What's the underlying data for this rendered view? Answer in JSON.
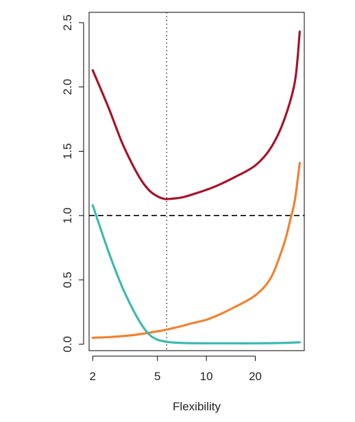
{
  "chart_data": {
    "type": "line",
    "title": "",
    "xlabel": "Flexibility",
    "ylabel": "",
    "x_scale": "log",
    "xlim": [
      1.9,
      40
    ],
    "ylim": [
      -0.05,
      2.58
    ],
    "x_ticks": [
      {
        "value": 2,
        "label": "2"
      },
      {
        "value": 5,
        "label": "5"
      },
      {
        "value": 10,
        "label": "10"
      },
      {
        "value": 20,
        "label": "20"
      }
    ],
    "y_ticks": [
      {
        "value": 0.0,
        "label": "0.0"
      },
      {
        "value": 0.5,
        "label": "0.5"
      },
      {
        "value": 1.0,
        "label": "1.0"
      },
      {
        "value": 1.5,
        "label": "1.5"
      },
      {
        "value": 2.0,
        "label": "2.0"
      },
      {
        "value": 2.5,
        "label": "2.5"
      }
    ],
    "grid": false,
    "series": [
      {
        "color": "#A5142A",
        "x": [
          2,
          2.5,
          3,
          3.5,
          4,
          4.5,
          5,
          5.5,
          6,
          7,
          8,
          10,
          12,
          15,
          20,
          25,
          30,
          35,
          37.5
        ],
        "y": [
          2.13,
          1.84,
          1.58,
          1.4,
          1.27,
          1.19,
          1.15,
          1.13,
          1.13,
          1.14,
          1.16,
          1.2,
          1.24,
          1.3,
          1.39,
          1.53,
          1.74,
          2.04,
          2.43
        ]
      },
      {
        "color": "#F08232",
        "x": [
          2,
          2.5,
          3,
          3.5,
          4,
          5,
          6,
          7,
          8,
          10,
          12,
          15,
          20,
          25,
          30,
          33,
          35,
          37.5
        ],
        "y": [
          0.05,
          0.055,
          0.062,
          0.07,
          0.08,
          0.1,
          0.12,
          0.14,
          0.16,
          0.19,
          0.23,
          0.29,
          0.38,
          0.52,
          0.78,
          0.98,
          1.12,
          1.41
        ]
      },
      {
        "color": "#3CB9AF",
        "x": [
          2,
          2.5,
          3,
          3.5,
          4,
          4.5,
          5,
          5.5,
          6,
          7,
          8,
          10,
          15,
          20,
          30,
          37.5
        ],
        "y": [
          1.08,
          0.72,
          0.46,
          0.28,
          0.15,
          0.07,
          0.035,
          0.022,
          0.015,
          0.01,
          0.008,
          0.007,
          0.007,
          0.007,
          0.01,
          0.015
        ]
      }
    ],
    "reference_lines": [
      {
        "orientation": "horizontal",
        "value": 1.0,
        "style": "dashed",
        "color": "#000000"
      },
      {
        "orientation": "vertical",
        "value": 5.7,
        "style": "dotted",
        "color": "#000000"
      }
    ]
  }
}
